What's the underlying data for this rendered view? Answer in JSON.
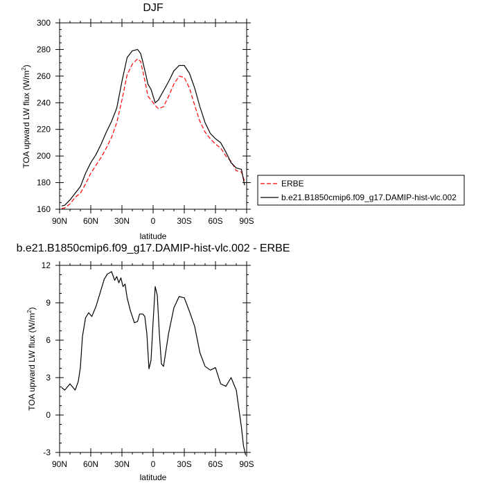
{
  "chart_data": [
    {
      "type": "line",
      "title": "DJF",
      "xlabel": "latitude",
      "ylabel": "TOA upward LW flux (W/m",
      "ylabel_sup": "2",
      "ylabel_end": ")",
      "x_ticks": [
        "90N",
        "60N",
        "30N",
        "0",
        "30S",
        "60S",
        "90S"
      ],
      "xlim": [
        -90,
        90
      ],
      "ylim": [
        160,
        300
      ],
      "y_ticks": [
        160,
        180,
        200,
        220,
        240,
        260,
        280,
        300
      ],
      "legend_placement": "right",
      "series": [
        {
          "name": "ERBE",
          "color": "#ff0000",
          "dash": "dashed",
          "x": [
            -88,
            -85,
            -80,
            -75,
            -70,
            -65,
            -60,
            -55,
            -50,
            -45,
            -40,
            -35,
            -30,
            -25,
            -20,
            -15,
            -12,
            -10,
            -7,
            -5,
            -2,
            0,
            2,
            5,
            10,
            15,
            20,
            25,
            30,
            35,
            40,
            45,
            50,
            55,
            60,
            65,
            70,
            75,
            80,
            85,
            88
          ],
          "values": [
            160.5,
            161,
            164,
            169,
            172,
            179,
            187,
            193,
            199,
            206,
            214,
            225,
            242,
            261,
            269,
            273,
            271,
            264,
            253,
            245,
            242,
            240,
            238,
            235.5,
            237,
            245,
            254,
            260,
            259,
            251,
            238,
            226,
            218,
            213,
            209,
            206,
            200,
            196,
            189,
            188,
            181
          ]
        },
        {
          "name": "b.e21.B1850cmip6.f09_g17.DAMIP-hist-vlc.002",
          "color": "#000000",
          "dash": "solid",
          "x": [
            -88,
            -85,
            -80,
            -75,
            -70,
            -65,
            -60,
            -55,
            -50,
            -45,
            -40,
            -35,
            -30,
            -25,
            -20,
            -15,
            -12,
            -10,
            -7,
            -5,
            -2,
            0,
            2,
            5,
            10,
            15,
            20,
            25,
            30,
            35,
            40,
            45,
            50,
            55,
            60,
            65,
            70,
            75,
            80,
            85,
            88
          ],
          "values": [
            162.5,
            163,
            167,
            172,
            177,
            187,
            195,
            201,
            209,
            218,
            226,
            236,
            256,
            274,
            279,
            280,
            277,
            271,
            261,
            254,
            250,
            245,
            240,
            242,
            249,
            256,
            264,
            268,
            268,
            262,
            251,
            237,
            225,
            217,
            213,
            210,
            203,
            195,
            191,
            190,
            178
          ]
        }
      ]
    },
    {
      "type": "line",
      "title": "b.e21.B1850cmip6.f09_g17.DAMIP-hist-vlc.002 - ERBE",
      "xlabel": "latitude",
      "ylabel": "TOA upward LW flux (W/m",
      "ylabel_sup": "2",
      "ylabel_end": ")",
      "x_ticks": [
        "90N",
        "60N",
        "30N",
        "0",
        "30S",
        "60S",
        "90S"
      ],
      "xlim": [
        -90,
        90
      ],
      "ylim": [
        -3,
        12
      ],
      "y_ticks": [
        -3,
        0,
        3,
        6,
        9,
        12
      ],
      "series": [
        {
          "name": "",
          "color": "#000000",
          "dash": "solid",
          "x": [
            -88,
            -85,
            -80,
            -75,
            -72,
            -70,
            -68,
            -65,
            -62,
            -59,
            -55,
            -51,
            -47,
            -44,
            -40,
            -37,
            -35,
            -33,
            -31,
            -29,
            -27,
            -25,
            -22,
            -18,
            -15,
            -13,
            -10,
            -8,
            -6,
            -4,
            -2,
            0,
            2,
            4,
            6,
            8,
            10,
            15,
            20,
            25,
            30,
            35,
            40,
            45,
            50,
            55,
            60,
            65,
            70,
            75,
            80,
            85,
            87,
            89
          ],
          "values": [
            2.2,
            2.0,
            2.5,
            2.0,
            2.7,
            3.8,
            6.3,
            7.8,
            8.2,
            7.9,
            8.7,
            9.8,
            10.9,
            11.3,
            11.5,
            10.8,
            11.1,
            10.6,
            11.0,
            10.3,
            10.5,
            9.4,
            8.4,
            7.4,
            7.5,
            8.1,
            8.1,
            7.9,
            6.5,
            3.7,
            4.4,
            7.5,
            10.3,
            9.6,
            6.5,
            4.1,
            3.9,
            6.6,
            8.6,
            9.5,
            9.4,
            8.3,
            7.1,
            5.0,
            3.9,
            3.6,
            3.8,
            2.5,
            2.3,
            3.0,
            2.0,
            -1.0,
            -2.5,
            -3.2
          ]
        }
      ]
    }
  ]
}
